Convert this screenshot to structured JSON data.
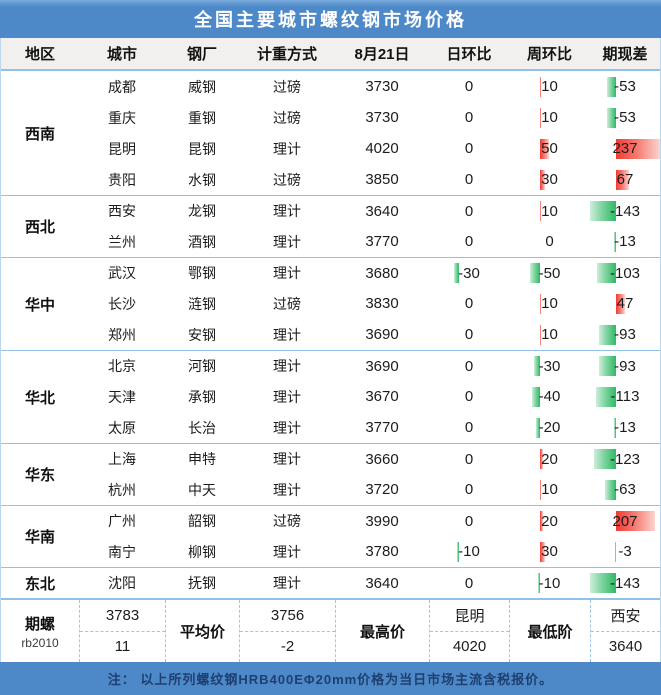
{
  "title": "全国主要城市螺纹钢市场价格",
  "colors": {
    "header_blue": "#4d89c8",
    "separator_blue": "#93c0e7",
    "bar_positive_red": "#f13b33",
    "bar_negative_green": "#2eb964",
    "footer_change_red": "#e0342c",
    "footer_change_green": "#4fbe7f"
  },
  "chart_data": {
    "type": "table",
    "title": "全国主要城市螺纹钢市场价格",
    "columns": [
      "地区",
      "城市",
      "钢厂",
      "计重方式",
      "8月21日",
      "日环比",
      "周环比",
      "期现差"
    ],
    "bar_columns_note": "日环比/周环比/期现差 cells carry conditional data bars; red = positive, green = negative; shared scale min -143 max 237",
    "groups": [
      {
        "region": "西南",
        "rows": [
          [
            "成都",
            "威钢",
            "过磅",
            3730,
            0,
            10,
            -53
          ],
          [
            "重庆",
            "重钢",
            "过磅",
            3730,
            0,
            10,
            -53
          ],
          [
            "昆明",
            "昆钢",
            "理计",
            4020,
            0,
            50,
            237
          ],
          [
            "贵阳",
            "水钢",
            "过磅",
            3850,
            0,
            30,
            67
          ]
        ]
      },
      {
        "region": "西北",
        "rows": [
          [
            "西安",
            "龙钢",
            "理计",
            3640,
            0,
            10,
            -143
          ],
          [
            "兰州",
            "酒钢",
            "理计",
            3770,
            0,
            0,
            -13
          ]
        ]
      },
      {
        "region": "华中",
        "rows": [
          [
            "武汉",
            "鄂钢",
            "理计",
            3680,
            -30,
            -50,
            -103
          ],
          [
            "长沙",
            "涟钢",
            "过磅",
            3830,
            0,
            10,
            47
          ],
          [
            "郑州",
            "安钢",
            "理计",
            3690,
            0,
            10,
            -93
          ]
        ]
      },
      {
        "region": "华北",
        "rows": [
          [
            "北京",
            "河钢",
            "理计",
            3690,
            0,
            -30,
            -93
          ],
          [
            "天津",
            "承钢",
            "理计",
            3670,
            0,
            -40,
            -113
          ],
          [
            "太原",
            "长治",
            "理计",
            3770,
            0,
            -20,
            -13
          ]
        ]
      },
      {
        "region": "华东",
        "rows": [
          [
            "上海",
            "申特",
            "理计",
            3660,
            0,
            20,
            -123
          ],
          [
            "杭州",
            "中天",
            "理计",
            3720,
            0,
            10,
            -63
          ]
        ]
      },
      {
        "region": "华南",
        "rows": [
          [
            "广州",
            "韶钢",
            "过磅",
            3990,
            0,
            20,
            207
          ],
          [
            "南宁",
            "柳钢",
            "理计",
            3780,
            -10,
            30,
            -3
          ]
        ]
      },
      {
        "region": "东北",
        "rows": [
          [
            "沈阳",
            "抚钢",
            "理计",
            3640,
            0,
            -10,
            -143
          ]
        ]
      }
    ]
  },
  "footer": {
    "contract_label": "期螺",
    "contract_code": "rb2010",
    "contract_price": "3783",
    "contract_change": "11",
    "avg_label": "平均价",
    "avg_price": "3756",
    "avg_change": "-2",
    "high_label": "最高价",
    "high_city": "昆明",
    "high_price": "4020",
    "low_label": "最低阶",
    "low_city": "西安",
    "low_price": "3640"
  },
  "note": "注： 以上所列螺纹钢HRB400EΦ20mm价格为当日市场主流含税报价。"
}
